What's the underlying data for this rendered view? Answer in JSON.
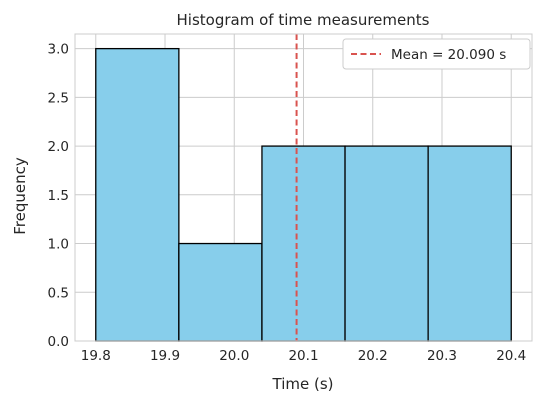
{
  "chart_data": {
    "type": "bar",
    "title": "Histogram of time measurements",
    "xlabel": "Time (s)",
    "ylabel": "Frequency",
    "xlim": [
      19.77,
      20.43
    ],
    "ylim": [
      0,
      3.15
    ],
    "bins": [
      {
        "start": 19.8,
        "end": 19.92,
        "count": 3
      },
      {
        "start": 19.92,
        "end": 20.04,
        "count": 1
      },
      {
        "start": 20.04,
        "end": 20.16,
        "count": 2
      },
      {
        "start": 20.16,
        "end": 20.28,
        "count": 2
      },
      {
        "start": 20.28,
        "end": 20.4,
        "count": 2
      }
    ],
    "x_ticks": [
      "19.8",
      "19.9",
      "20.0",
      "20.1",
      "20.2",
      "20.3",
      "20.4"
    ],
    "y_ticks": [
      "0.0",
      "0.5",
      "1.0",
      "1.5",
      "2.0",
      "2.5",
      "3.0"
    ],
    "mean_line": {
      "value": 20.09,
      "label": "Mean = 20.090 s",
      "color": "#d9534f"
    },
    "bar_color": "#87ceeb",
    "edge_color": "#000000",
    "grid": true,
    "legend_position": "top-right"
  }
}
